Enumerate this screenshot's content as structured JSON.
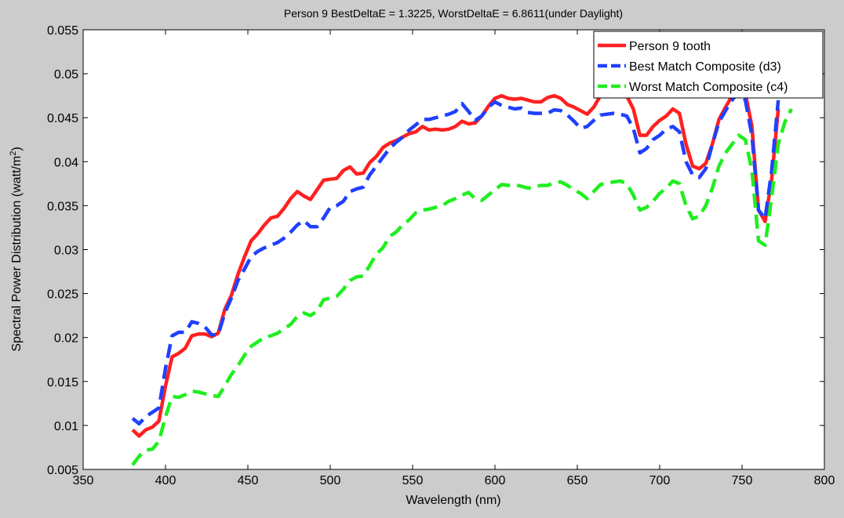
{
  "chart_data": {
    "type": "line",
    "title": "Person 9 BestDeltaE = 1.3225, WorstDeltaE = 6.8611(under Daylight)",
    "xlabel": "Wavelength (nm)",
    "ylabel": "Spectral Power Distribution (watt/m",
    "ylabel_superscript": "2",
    "ylabel_suffix": ")",
    "xlim": [
      350,
      800
    ],
    "ylim": [
      0.005,
      0.055
    ],
    "xticks": [
      350,
      400,
      450,
      500,
      550,
      600,
      650,
      700,
      750,
      800
    ],
    "yticks": [
      0.005,
      0.01,
      0.015,
      0.02,
      0.025,
      0.03,
      0.035,
      0.04,
      0.045,
      0.05,
      0.055
    ],
    "ytick_labels": [
      "0.005",
      "0.01",
      "0.015",
      "0.02",
      "0.025",
      "0.03",
      "0.035",
      "0.04",
      "0.045",
      "0.05",
      "0.055"
    ],
    "grid": false,
    "legend_position": "top-right",
    "series": [
      {
        "name": "Person 9 tooth",
        "color": "#ff2020",
        "style": "solid",
        "x": [
          380,
          384,
          388,
          392,
          396,
          400,
          404,
          408,
          412,
          416,
          420,
          424,
          428,
          432,
          436,
          440,
          444,
          448,
          452,
          456,
          460,
          464,
          468,
          472,
          476,
          480,
          484,
          488,
          492,
          496,
          500,
          504,
          508,
          512,
          516,
          520,
          524,
          528,
          532,
          536,
          540,
          544,
          548,
          552,
          556,
          560,
          564,
          568,
          572,
          576,
          580,
          584,
          588,
          592,
          596,
          600,
          604,
          608,
          612,
          616,
          620,
          624,
          628,
          632,
          636,
          640,
          644,
          648,
          652,
          656,
          660,
          664,
          668,
          672,
          676,
          680,
          684,
          688,
          692,
          696,
          700,
          704,
          708,
          712,
          716,
          720,
          724,
          728,
          732,
          736,
          740,
          744,
          748,
          752,
          756,
          760,
          764,
          768,
          772
        ],
        "y": [
          0.0095,
          0.0088,
          0.0095,
          0.0098,
          0.0105,
          0.0145,
          0.0178,
          0.0182,
          0.0188,
          0.0202,
          0.0204,
          0.0204,
          0.0201,
          0.0205,
          0.0232,
          0.0248,
          0.0272,
          0.0292,
          0.031,
          0.0318,
          0.0328,
          0.0336,
          0.0338,
          0.0347,
          0.0358,
          0.0366,
          0.0361,
          0.0357,
          0.0368,
          0.0379,
          0.038,
          0.0381,
          0.039,
          0.0394,
          0.0386,
          0.0387,
          0.0399,
          0.0406,
          0.0416,
          0.0421,
          0.0424,
          0.0428,
          0.0432,
          0.0434,
          0.044,
          0.0436,
          0.0437,
          0.0436,
          0.0437,
          0.044,
          0.0446,
          0.0443,
          0.0444,
          0.0452,
          0.0463,
          0.0472,
          0.0475,
          0.0472,
          0.0471,
          0.0472,
          0.047,
          0.0468,
          0.0468,
          0.0473,
          0.0475,
          0.0472,
          0.0465,
          0.0462,
          0.0458,
          0.0454,
          0.0462,
          0.0475,
          0.0478,
          0.048,
          0.0479,
          0.0475,
          0.046,
          0.043,
          0.043,
          0.044,
          0.0447,
          0.0452,
          0.046,
          0.0455,
          0.042,
          0.0395,
          0.0392,
          0.0398,
          0.042,
          0.0448,
          0.0462,
          0.0475,
          0.0485,
          0.0478,
          0.044,
          0.0345,
          0.0332,
          0.038,
          0.046
        ]
      },
      {
        "name": "Best Match Composite (d3)",
        "color": "#2040ff",
        "style": "dashed",
        "x": [
          380,
          384,
          388,
          392,
          396,
          400,
          404,
          408,
          412,
          416,
          420,
          424,
          428,
          432,
          436,
          440,
          444,
          448,
          452,
          456,
          460,
          464,
          468,
          472,
          476,
          480,
          484,
          488,
          492,
          496,
          500,
          504,
          508,
          512,
          516,
          520,
          524,
          528,
          532,
          536,
          540,
          544,
          548,
          552,
          556,
          560,
          564,
          568,
          572,
          576,
          580,
          584,
          588,
          592,
          596,
          600,
          604,
          608,
          612,
          616,
          620,
          624,
          628,
          632,
          636,
          640,
          644,
          648,
          652,
          656,
          660,
          664,
          668,
          672,
          676,
          680,
          684,
          688,
          692,
          696,
          700,
          704,
          708,
          712,
          716,
          720,
          724,
          728,
          732,
          736,
          740,
          744,
          748,
          752,
          756,
          760,
          764,
          768,
          772
        ],
        "y": [
          0.0108,
          0.0102,
          0.011,
          0.0115,
          0.012,
          0.0165,
          0.0202,
          0.0206,
          0.0206,
          0.0218,
          0.0216,
          0.0212,
          0.0203,
          0.0203,
          0.0228,
          0.0245,
          0.0265,
          0.0278,
          0.0292,
          0.0298,
          0.0302,
          0.0305,
          0.0308,
          0.0313,
          0.032,
          0.0328,
          0.0333,
          0.0326,
          0.0326,
          0.0336,
          0.0348,
          0.035,
          0.0355,
          0.0366,
          0.0369,
          0.0371,
          0.0385,
          0.0395,
          0.0405,
          0.0415,
          0.0422,
          0.0428,
          0.0436,
          0.0442,
          0.0448,
          0.0448,
          0.045,
          0.0452,
          0.0454,
          0.0457,
          0.0466,
          0.0457,
          0.0447,
          0.0452,
          0.0462,
          0.0468,
          0.0464,
          0.0462,
          0.046,
          0.0461,
          0.0456,
          0.0455,
          0.0455,
          0.0455,
          0.0459,
          0.0458,
          0.0453,
          0.0446,
          0.0438,
          0.044,
          0.0447,
          0.0453,
          0.0454,
          0.0455,
          0.0454,
          0.0452,
          0.0438,
          0.041,
          0.0415,
          0.0425,
          0.043,
          0.0437,
          0.044,
          0.0434,
          0.04,
          0.0385,
          0.0382,
          0.0392,
          0.042,
          0.0445,
          0.0458,
          0.047,
          0.048,
          0.047,
          0.043,
          0.0345,
          0.0335,
          0.039,
          0.047
        ]
      },
      {
        "name": "Worst Match Composite (c4)",
        "color": "#20ee20",
        "style": "dashed",
        "x": [
          380,
          384,
          388,
          392,
          396,
          400,
          404,
          408,
          412,
          416,
          420,
          424,
          428,
          432,
          436,
          440,
          444,
          448,
          452,
          456,
          460,
          464,
          468,
          472,
          476,
          480,
          484,
          488,
          492,
          496,
          500,
          504,
          508,
          512,
          516,
          520,
          524,
          528,
          532,
          536,
          540,
          544,
          548,
          552,
          556,
          560,
          564,
          568,
          572,
          576,
          580,
          584,
          588,
          592,
          596,
          600,
          604,
          608,
          612,
          616,
          620,
          624,
          628,
          632,
          636,
          640,
          644,
          648,
          652,
          656,
          660,
          664,
          668,
          672,
          676,
          680,
          684,
          688,
          692,
          696,
          700,
          704,
          708,
          712,
          716,
          720,
          724,
          728,
          732,
          736,
          740,
          744,
          748,
          752,
          756,
          760,
          764,
          768,
          772,
          776,
          780
        ],
        "y": [
          0.0055,
          0.0065,
          0.0072,
          0.0073,
          0.0082,
          0.011,
          0.0133,
          0.0132,
          0.0135,
          0.0139,
          0.0138,
          0.0136,
          0.0134,
          0.0133,
          0.0145,
          0.0158,
          0.0168,
          0.018,
          0.019,
          0.0195,
          0.02,
          0.0202,
          0.0205,
          0.021,
          0.0215,
          0.0224,
          0.0228,
          0.0225,
          0.023,
          0.0243,
          0.0245,
          0.0247,
          0.0255,
          0.0265,
          0.0269,
          0.027,
          0.0282,
          0.0295,
          0.0302,
          0.0315,
          0.032,
          0.0328,
          0.0334,
          0.0342,
          0.0345,
          0.0346,
          0.0348,
          0.035,
          0.0355,
          0.0358,
          0.0362,
          0.0365,
          0.0358,
          0.0356,
          0.0362,
          0.0368,
          0.0374,
          0.0373,
          0.0374,
          0.0372,
          0.037,
          0.0371,
          0.0373,
          0.0373,
          0.0376,
          0.0377,
          0.0373,
          0.0368,
          0.0364,
          0.0358,
          0.0366,
          0.0374,
          0.0375,
          0.0377,
          0.0378,
          0.0375,
          0.0362,
          0.0345,
          0.0348,
          0.0355,
          0.0364,
          0.037,
          0.0378,
          0.0375,
          0.035,
          0.0335,
          0.0338,
          0.035,
          0.037,
          0.0395,
          0.041,
          0.042,
          0.043,
          0.0425,
          0.039,
          0.031,
          0.0305,
          0.036,
          0.042,
          0.0445,
          0.046
        ]
      }
    ]
  }
}
